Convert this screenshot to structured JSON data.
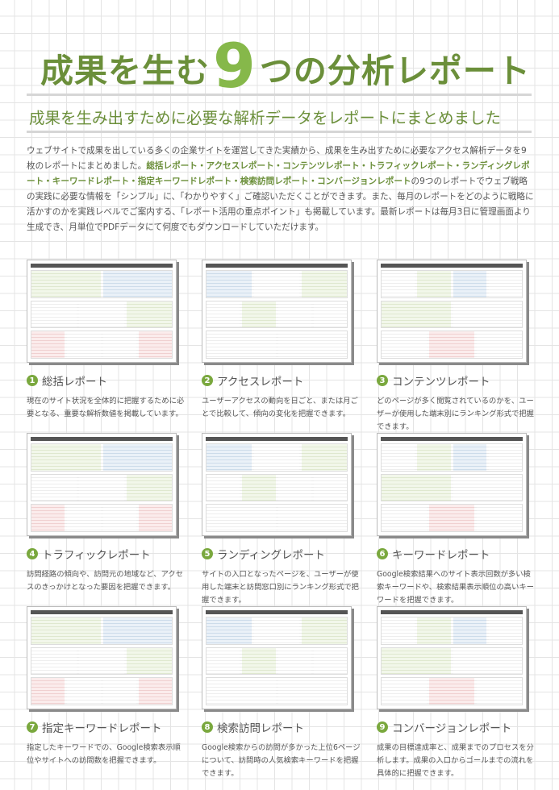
{
  "header": {
    "title_pre": "成果を生む",
    "title_num": "9",
    "title_post": "つの分析レポート",
    "subtitle": "成果を生み出すために必要な解析データをレポートにまとめました"
  },
  "intro": {
    "part1": "ウェブサイトで成果を出している多くの企業サイトを運営してきた実績から、成果を生み出すために必要なアクセス解析データを9枚のレポートにまとめました。",
    "highlight": "総括レポート・アクセスレポート・コンテンツレポート・トラフィックレポート・ランディングレポート・キーワードレポート・指定キーワードレポート・検索訪問レポート・コンバージョンレポート",
    "part2": "の9つのレポートでウェブ戦略の実践に必要な情報を「シンプル」に、「わかりやすく」ご確認いただくことができます。また、毎月のレポートをどのように戦略に活かすのかを実践レベルでご案内する、「レポート活用の重点ポイント」も掲載しています。最新レポートは毎月3日に管理画面より生成でき、月単位でPDFデータにて何度でもダウンロードしていただけます。"
  },
  "accent_color": "#6b8f3a",
  "reports": [
    {
      "num": "1",
      "title": "総括レポート",
      "desc": "現在のサイト状況を全体的に把握するために必要となる、重要な解析数値を掲載しています。"
    },
    {
      "num": "2",
      "title": "アクセスレポート",
      "desc": "ユーザーアクセスの動向を日ごと、または月ごとで比較して、傾向の変化を把握できます。"
    },
    {
      "num": "3",
      "title": "コンテンツレポート",
      "desc": "どのページが多く閲覧されているのかを、ユーザーが使用した端末別にランキング形式で把握できます。"
    },
    {
      "num": "4",
      "title": "トラフィックレポート",
      "desc": "訪問経路の傾向や、訪問元の地域など、アクセスのきっかけとなった要因を把握できます。"
    },
    {
      "num": "5",
      "title": "ランディングレポート",
      "desc": "サイトの入口となったページを、ユーザーが使用した端末と訪問窓口別にランキング形式で把握できます。"
    },
    {
      "num": "6",
      "title": "キーワードレポート",
      "desc": "Google検索結果へのサイト表示回数が多い検索キーワードや、検索結果表示順位の高いキーワードを把握できます。"
    },
    {
      "num": "7",
      "title": "指定キーワードレポート",
      "desc": "指定したキーワードでの、Google検索表示順位やサイトへの訪問数を把握できます。"
    },
    {
      "num": "8",
      "title": "検索訪問レポート",
      "desc": "Google検索からの訪問が多かった上位6ページについて、訪問時の人気検索キーワードを把握できます。"
    },
    {
      "num": "9",
      "title": "コンバージョンレポート",
      "desc": "成果の目標達成率と、成果までのプロセスを分析します。成果の入口からゴールまでの流れを具体的に把握できます。"
    }
  ]
}
